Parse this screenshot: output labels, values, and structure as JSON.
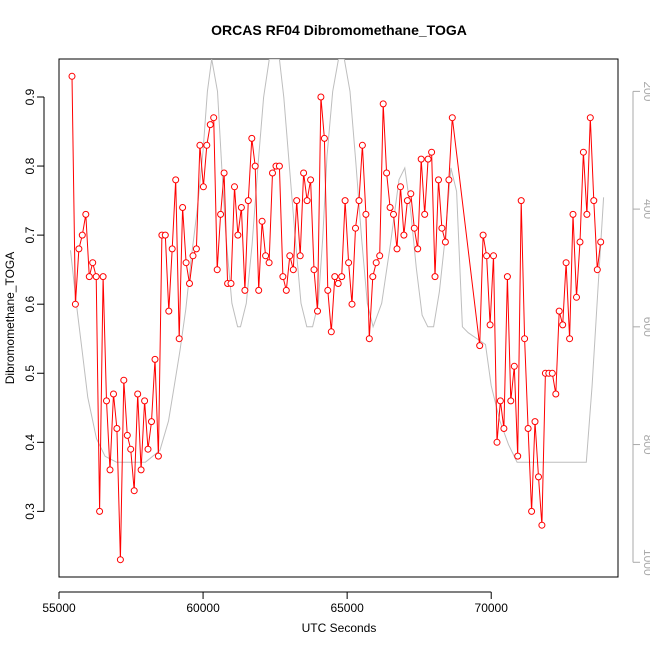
{
  "chart_data": {
    "type": "line",
    "title": "ORCAS RF04 Dibromomethane_TOGA",
    "xlabel": "UTC Seconds",
    "ylabel": "Dibromomethane_TOGA",
    "xlim": [
      55000,
      74400
    ],
    "ylim": [
      0.205,
      0.955
    ],
    "x_ticks": [
      55000,
      60000,
      65000,
      70000
    ],
    "y_ticks": [
      0.3,
      0.4,
      0.5,
      0.6,
      0.7,
      0.8,
      0.9
    ],
    "y2_lim": [
      1025,
      145
    ],
    "y2_ticks": [
      200,
      400,
      600,
      800,
      1000
    ],
    "grid": false,
    "colors": {
      "series": "#ff0000",
      "secondary": "#bebebe",
      "axis": "#000000",
      "secondary_axis": "#aaaaaa"
    },
    "series": [
      {
        "x": [
          55450,
          55570,
          55690,
          55810,
          55930,
          56050,
          56170,
          56290,
          56410,
          56530,
          56650,
          56770,
          56890,
          57010,
          57130,
          57250,
          57370,
          57490,
          57610,
          57730,
          57850,
          57970,
          58090,
          58210,
          58330,
          58450,
          58570,
          58690,
          58810,
          58930,
          59050,
          59170,
          59290,
          59410,
          59530,
          59650,
          59770,
          59890,
          60010,
          60130,
          60250,
          60370,
          60490,
          60610,
          60730,
          60850,
          60970,
          61090,
          61210,
          61330,
          61450,
          61570,
          61690,
          61810,
          61930,
          62050,
          62170,
          62290,
          62410,
          62530,
          62650,
          62770,
          62890,
          63010,
          63130,
          63250,
          63370,
          63490,
          63610,
          63730,
          63850,
          63970,
          64090,
          64210,
          64330,
          64450,
          64570,
          64690,
          64810,
          64930,
          65050,
          65170,
          65290,
          65410,
          65530,
          65650,
          65770,
          65890,
          66010,
          66130,
          66250,
          66370,
          66490,
          66610,
          66730,
          66850,
          66970,
          67090,
          67210,
          67330,
          67450,
          67570,
          67690,
          67810,
          67930,
          68050,
          68170,
          68290,
          68410,
          68530,
          68650,
          69600,
          69720,
          69840,
          69960,
          70080,
          70200,
          70320,
          70440,
          70560,
          70680,
          70800,
          70920,
          71040,
          71160,
          71280,
          71400,
          71520,
          71640,
          71760,
          71880,
          72000,
          72120,
          72240,
          72360,
          72480,
          72600,
          72720,
          72840,
          72960,
          73080,
          73200,
          73320,
          73440,
          73560,
          73680,
          73800
        ],
        "values": [
          0.93,
          0.6,
          0.68,
          0.7,
          0.73,
          0.64,
          0.66,
          0.64,
          0.3,
          0.64,
          0.46,
          0.36,
          0.47,
          0.42,
          0.23,
          0.49,
          0.41,
          0.39,
          0.33,
          0.47,
          0.36,
          0.46,
          0.39,
          0.43,
          0.52,
          0.38,
          0.7,
          0.7,
          0.59,
          0.68,
          0.78,
          0.55,
          0.74,
          0.66,
          0.63,
          0.67,
          0.68,
          0.83,
          0.77,
          0.83,
          0.86,
          0.87,
          0.65,
          0.73,
          0.79,
          0.63,
          0.63,
          0.77,
          0.7,
          0.74,
          0.62,
          0.75,
          0.84,
          0.8,
          0.62,
          0.72,
          0.67,
          0.66,
          0.79,
          0.8,
          0.8,
          0.64,
          0.62,
          0.67,
          0.65,
          0.75,
          0.67,
          0.79,
          0.75,
          0.78,
          0.65,
          0.59,
          0.9,
          0.84,
          0.62,
          0.56,
          0.64,
          0.63,
          0.64,
          0.75,
          0.66,
          0.6,
          0.71,
          0.75,
          0.83,
          0.73,
          0.55,
          0.64,
          0.66,
          0.67,
          0.89,
          0.79,
          0.74,
          0.73,
          0.68,
          0.77,
          0.7,
          0.75,
          0.76,
          0.71,
          0.68,
          0.81,
          0.73,
          0.81,
          0.82,
          0.64,
          0.78,
          0.71,
          0.69,
          0.78,
          0.87,
          0.54,
          0.7,
          0.67,
          0.57,
          0.67,
          0.4,
          0.46,
          0.42,
          0.64,
          0.46,
          0.51,
          0.38,
          0.75,
          0.55,
          0.42,
          0.3,
          0.43,
          0.35,
          0.28,
          0.5,
          0.5,
          0.5,
          0.47,
          0.59,
          0.57,
          0.66,
          0.55,
          0.73,
          0.61,
          0.69,
          0.82,
          0.73,
          0.87,
          0.75,
          0.65,
          0.69
        ]
      }
    ],
    "secondary_series": {
      "x": [
        55400,
        55600,
        55800,
        56000,
        56300,
        56600,
        57000,
        57500,
        58000,
        58500,
        58800,
        59000,
        59200,
        59400,
        59600,
        59800,
        60000,
        60150,
        60300,
        60500,
        60650,
        60800,
        61000,
        61200,
        61300,
        61500,
        61700,
        61900,
        62100,
        62300,
        62500,
        62650,
        62800,
        63000,
        63200,
        63400,
        63600,
        63800,
        64000,
        64150,
        64300,
        64500,
        64700,
        64900,
        65100,
        65300,
        65500,
        65700,
        65900,
        66200,
        66500,
        66800,
        67000,
        67200,
        67400,
        67600,
        67800,
        68000,
        68200,
        68400,
        68600,
        68800,
        69000,
        69200,
        69500,
        69800,
        70000,
        70300,
        70600,
        70900,
        71200,
        71500,
        71800,
        72200,
        72600,
        73000,
        73300,
        73500,
        73700,
        73900
      ],
      "values": [
        470,
        560,
        640,
        720,
        790,
        820,
        830,
        830,
        830,
        810,
        760,
        700,
        640,
        570,
        480,
        400,
        300,
        200,
        145,
        200,
        330,
        450,
        560,
        600,
        600,
        560,
        460,
        330,
        210,
        145,
        145,
        145,
        210,
        330,
        450,
        560,
        600,
        600,
        560,
        450,
        310,
        200,
        145,
        145,
        200,
        320,
        450,
        560,
        600,
        560,
        460,
        350,
        330,
        400,
        500,
        580,
        600,
        600,
        540,
        450,
        330,
        370,
        600,
        610,
        620,
        630,
        700,
        760,
        800,
        830,
        830,
        830,
        830,
        830,
        830,
        830,
        830,
        700,
        540,
        380
      ]
    }
  }
}
